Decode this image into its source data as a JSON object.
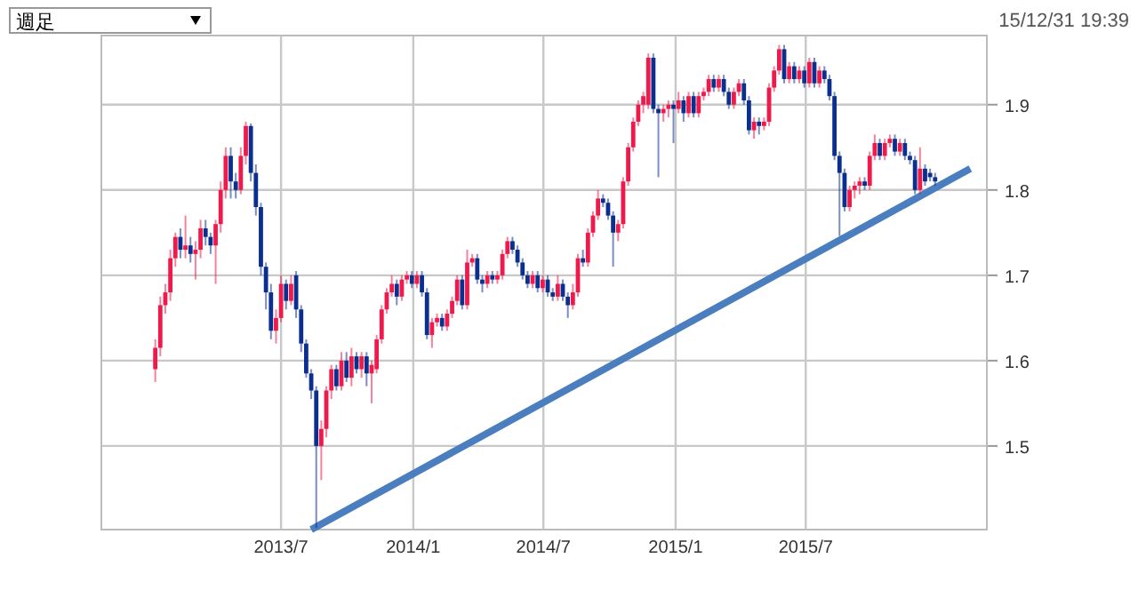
{
  "chart_data": {
    "type": "candlestick",
    "annotations": [
      "週足",
      "15/12/31 19:39"
    ],
    "xlim": [
      "2012-10-24",
      "2016-03-09"
    ],
    "xticks": [
      {
        "value": "2013-07-01",
        "label": "2013/7"
      },
      {
        "value": "2014-01-01",
        "label": "2014/1"
      },
      {
        "value": "2014-07-01",
        "label": "2014/7"
      },
      {
        "value": "2015-01-01",
        "label": "2015/1"
      },
      {
        "value": "2015-07-01",
        "label": "2015/7"
      }
    ],
    "ylim": [
      1.402,
      1.981
    ],
    "yticks": [
      1.5,
      1.6,
      1.7,
      1.8,
      1.9
    ],
    "grid": true,
    "series": [
      {
        "type": "candlestick",
        "x": [
          "2013-01-07",
          "2013-01-14",
          "2013-01-21",
          "2013-01-28",
          "2013-02-04",
          "2013-02-11",
          "2013-02-18",
          "2013-02-25",
          "2013-03-04",
          "2013-03-11",
          "2013-03-18",
          "2013-03-25",
          "2013-04-01",
          "2013-04-08",
          "2013-04-15",
          "2013-04-22",
          "2013-04-29",
          "2013-05-06",
          "2013-05-13",
          "2013-05-20",
          "2013-05-27",
          "2013-06-03",
          "2013-06-10",
          "2013-06-17",
          "2013-06-24",
          "2013-07-01",
          "2013-07-08",
          "2013-07-15",
          "2013-07-22",
          "2013-07-29",
          "2013-08-05",
          "2013-08-12",
          "2013-08-19",
          "2013-08-26",
          "2013-09-02",
          "2013-09-09",
          "2013-09-16",
          "2013-09-23",
          "2013-09-30",
          "2013-10-07",
          "2013-10-14",
          "2013-10-21",
          "2013-10-28",
          "2013-11-04",
          "2013-11-11",
          "2013-11-18",
          "2013-11-25",
          "2013-12-02",
          "2013-12-09",
          "2013-12-16",
          "2013-12-23",
          "2013-12-30",
          "2014-01-06",
          "2014-01-13",
          "2014-01-20",
          "2014-01-27",
          "2014-02-03",
          "2014-02-10",
          "2014-02-17",
          "2014-02-24",
          "2014-03-03",
          "2014-03-10",
          "2014-03-17",
          "2014-03-24",
          "2014-03-31",
          "2014-04-07",
          "2014-04-14",
          "2014-04-21",
          "2014-04-28",
          "2014-05-05",
          "2014-05-12",
          "2014-05-19",
          "2014-05-26",
          "2014-06-02",
          "2014-06-09",
          "2014-06-16",
          "2014-06-23",
          "2014-06-30",
          "2014-07-07",
          "2014-07-14",
          "2014-07-21",
          "2014-07-28",
          "2014-08-04",
          "2014-08-11",
          "2014-08-18",
          "2014-08-25",
          "2014-09-01",
          "2014-09-08",
          "2014-09-15",
          "2014-09-22",
          "2014-09-29",
          "2014-10-06",
          "2014-10-13",
          "2014-10-20",
          "2014-10-27",
          "2014-11-03",
          "2014-11-10",
          "2014-11-17",
          "2014-11-24",
          "2014-12-01",
          "2014-12-08",
          "2014-12-15",
          "2014-12-22",
          "2014-12-29",
          "2015-01-05",
          "2015-01-12",
          "2015-01-19",
          "2015-01-26",
          "2015-02-02",
          "2015-02-09",
          "2015-02-16",
          "2015-02-23",
          "2015-03-02",
          "2015-03-09",
          "2015-03-16",
          "2015-03-23",
          "2015-03-30",
          "2015-04-06",
          "2015-04-13",
          "2015-04-20",
          "2015-04-27",
          "2015-05-04",
          "2015-05-11",
          "2015-05-18",
          "2015-05-25",
          "2015-06-01",
          "2015-06-08",
          "2015-06-15",
          "2015-06-22",
          "2015-06-29",
          "2015-07-06",
          "2015-07-13",
          "2015-07-20",
          "2015-07-27",
          "2015-08-03",
          "2015-08-10",
          "2015-08-17",
          "2015-08-24",
          "2015-08-31",
          "2015-09-07",
          "2015-09-14",
          "2015-09-21",
          "2015-09-28",
          "2015-10-05",
          "2015-10-12",
          "2015-10-19",
          "2015-10-26",
          "2015-11-02",
          "2015-11-09",
          "2015-11-16",
          "2015-11-23",
          "2015-11-30",
          "2015-12-07",
          "2015-12-14",
          "2015-12-21",
          "2015-12-28"
        ],
        "ohlc": [
          [
            1.59,
            1.625,
            1.575,
            1.615
          ],
          [
            1.615,
            1.675,
            1.605,
            1.665
          ],
          [
            1.665,
            1.69,
            1.655,
            1.68
          ],
          [
            1.68,
            1.73,
            1.67,
            1.72
          ],
          [
            1.72,
            1.75,
            1.71,
            1.745
          ],
          [
            1.745,
            1.755,
            1.72,
            1.73
          ],
          [
            1.73,
            1.77,
            1.72,
            1.735
          ],
          [
            1.735,
            1.745,
            1.715,
            1.725
          ],
          [
            1.725,
            1.74,
            1.695,
            1.73
          ],
          [
            1.73,
            1.765,
            1.72,
            1.755
          ],
          [
            1.755,
            1.765,
            1.735,
            1.745
          ],
          [
            1.745,
            1.75,
            1.725,
            1.735
          ],
          [
            1.735,
            1.765,
            1.69,
            1.76
          ],
          [
            1.76,
            1.81,
            1.75,
            1.8
          ],
          [
            1.8,
            1.85,
            1.79,
            1.84
          ],
          [
            1.84,
            1.85,
            1.79,
            1.81
          ],
          [
            1.81,
            1.82,
            1.79,
            1.8
          ],
          [
            1.8,
            1.85,
            1.795,
            1.84
          ],
          [
            1.84,
            1.88,
            1.83,
            1.875
          ],
          [
            1.875,
            1.878,
            1.81,
            1.82
          ],
          [
            1.82,
            1.83,
            1.77,
            1.78
          ],
          [
            1.78,
            1.785,
            1.7,
            1.71
          ],
          [
            1.71,
            1.715,
            1.66,
            1.68
          ],
          [
            1.68,
            1.69,
            1.625,
            1.635
          ],
          [
            1.635,
            1.66,
            1.62,
            1.65
          ],
          [
            1.65,
            1.7,
            1.645,
            1.69
          ],
          [
            1.69,
            1.695,
            1.66,
            1.67
          ],
          [
            1.67,
            1.7,
            1.665,
            1.69
          ],
          [
            1.7,
            1.705,
            1.65,
            1.66
          ],
          [
            1.66,
            1.665,
            1.61,
            1.62
          ],
          [
            1.62,
            1.625,
            1.58,
            1.585
          ],
          [
            1.585,
            1.59,
            1.555,
            1.565
          ],
          [
            1.565,
            1.57,
            1.404,
            1.5
          ],
          [
            1.5,
            1.53,
            1.46,
            1.52
          ],
          [
            1.52,
            1.57,
            1.51,
            1.565
          ],
          [
            1.565,
            1.595,
            1.555,
            1.59
          ],
          [
            1.59,
            1.595,
            1.565,
            1.57
          ],
          [
            1.57,
            1.61,
            1.565,
            1.6
          ],
          [
            1.6,
            1.61,
            1.575,
            1.58
          ],
          [
            1.58,
            1.615,
            1.57,
            1.605
          ],
          [
            1.605,
            1.61,
            1.585,
            1.59
          ],
          [
            1.59,
            1.61,
            1.58,
            1.605
          ],
          [
            1.605,
            1.61,
            1.57,
            1.585
          ],
          [
            1.585,
            1.6,
            1.55,
            1.595
          ],
          [
            1.59,
            1.63,
            1.585,
            1.625
          ],
          [
            1.625,
            1.665,
            1.62,
            1.66
          ],
          [
            1.66,
            1.685,
            1.655,
            1.68
          ],
          [
            1.68,
            1.7,
            1.675,
            1.69
          ],
          [
            1.69,
            1.695,
            1.665,
            1.675
          ],
          [
            1.675,
            1.7,
            1.67,
            1.695
          ],
          [
            1.695,
            1.705,
            1.69,
            1.7
          ],
          [
            1.7,
            1.705,
            1.685,
            1.69
          ],
          [
            1.69,
            1.705,
            1.685,
            1.7
          ],
          [
            1.7,
            1.705,
            1.675,
            1.68
          ],
          [
            1.68,
            1.685,
            1.625,
            1.63
          ],
          [
            1.63,
            1.65,
            1.615,
            1.645
          ],
          [
            1.645,
            1.655,
            1.64,
            1.65
          ],
          [
            1.65,
            1.655,
            1.635,
            1.64
          ],
          [
            1.64,
            1.66,
            1.635,
            1.655
          ],
          [
            1.655,
            1.675,
            1.65,
            1.67
          ],
          [
            1.67,
            1.7,
            1.665,
            1.695
          ],
          [
            1.695,
            1.7,
            1.66,
            1.665
          ],
          [
            1.665,
            1.73,
            1.66,
            1.715
          ],
          [
            1.715,
            1.725,
            1.71,
            1.72
          ],
          [
            1.72,
            1.725,
            1.69,
            1.695
          ],
          [
            1.695,
            1.7,
            1.68,
            1.69
          ],
          [
            1.69,
            1.705,
            1.685,
            1.7
          ],
          [
            1.7,
            1.705,
            1.69,
            1.695
          ],
          [
            1.695,
            1.705,
            1.69,
            1.7
          ],
          [
            1.7,
            1.73,
            1.695,
            1.725
          ],
          [
            1.725,
            1.745,
            1.72,
            1.74
          ],
          [
            1.74,
            1.745,
            1.725,
            1.73
          ],
          [
            1.73,
            1.735,
            1.71,
            1.715
          ],
          [
            1.715,
            1.72,
            1.695,
            1.7
          ],
          [
            1.7,
            1.705,
            1.685,
            1.69
          ],
          [
            1.69,
            1.705,
            1.685,
            1.7
          ],
          [
            1.7,
            1.705,
            1.68,
            1.685
          ],
          [
            1.685,
            1.7,
            1.68,
            1.695
          ],
          [
            1.695,
            1.7,
            1.675,
            1.68
          ],
          [
            1.68,
            1.685,
            1.67,
            1.675
          ],
          [
            1.675,
            1.7,
            1.67,
            1.69
          ],
          [
            1.69,
            1.695,
            1.67,
            1.675
          ],
          [
            1.675,
            1.68,
            1.65,
            1.665
          ],
          [
            1.665,
            1.69,
            1.66,
            1.68
          ],
          [
            1.68,
            1.725,
            1.675,
            1.72
          ],
          [
            1.72,
            1.73,
            1.71,
            1.715
          ],
          [
            1.715,
            1.755,
            1.71,
            1.75
          ],
          [
            1.75,
            1.775,
            1.745,
            1.77
          ],
          [
            1.77,
            1.8,
            1.765,
            1.79
          ],
          [
            1.79,
            1.795,
            1.78,
            1.785
          ],
          [
            1.785,
            1.79,
            1.765,
            1.77
          ],
          [
            1.77,
            1.775,
            1.71,
            1.75
          ],
          [
            1.75,
            1.765,
            1.74,
            1.76
          ],
          [
            1.76,
            1.815,
            1.755,
            1.81
          ],
          [
            1.81,
            1.855,
            1.805,
            1.85
          ],
          [
            1.85,
            1.885,
            1.845,
            1.88
          ],
          [
            1.88,
            1.905,
            1.875,
            1.9
          ],
          [
            1.9,
            1.915,
            1.89,
            1.91
          ],
          [
            1.9,
            1.96,
            1.895,
            1.955
          ],
          [
            1.955,
            1.96,
            1.89,
            1.895
          ],
          [
            1.895,
            1.9,
            1.815,
            1.89
          ],
          [
            1.89,
            1.9,
            1.88,
            1.895
          ],
          [
            1.895,
            1.905,
            1.885,
            1.9
          ],
          [
            1.9,
            1.905,
            1.855,
            1.895
          ],
          [
            1.895,
            1.915,
            1.89,
            1.905
          ],
          [
            1.905,
            1.91,
            1.88,
            1.89
          ],
          [
            1.89,
            1.915,
            1.885,
            1.91
          ],
          [
            1.91,
            1.915,
            1.885,
            1.89
          ],
          [
            1.89,
            1.915,
            1.885,
            1.91
          ],
          [
            1.91,
            1.92,
            1.905,
            1.915
          ],
          [
            1.915,
            1.935,
            1.91,
            1.93
          ],
          [
            1.93,
            1.935,
            1.915,
            1.92
          ],
          [
            1.92,
            1.935,
            1.915,
            1.93
          ],
          [
            1.93,
            1.935,
            1.91,
            1.915
          ],
          [
            1.915,
            1.92,
            1.895,
            1.9
          ],
          [
            1.9,
            1.92,
            1.895,
            1.915
          ],
          [
            1.915,
            1.93,
            1.91,
            1.925
          ],
          [
            1.925,
            1.93,
            1.9,
            1.905
          ],
          [
            1.905,
            1.91,
            1.865,
            1.87
          ],
          [
            1.87,
            1.885,
            1.86,
            1.88
          ],
          [
            1.88,
            1.885,
            1.865,
            1.875
          ],
          [
            1.875,
            1.885,
            1.87,
            1.88
          ],
          [
            1.88,
            1.925,
            1.875,
            1.92
          ],
          [
            1.92,
            1.945,
            1.915,
            1.94
          ],
          [
            1.94,
            1.97,
            1.935,
            1.965
          ],
          [
            1.965,
            1.97,
            1.925,
            1.93
          ],
          [
            1.93,
            1.95,
            1.925,
            1.945
          ],
          [
            1.945,
            1.95,
            1.925,
            1.93
          ],
          [
            1.93,
            1.945,
            1.925,
            1.94
          ],
          [
            1.94,
            1.945,
            1.92,
            1.925
          ],
          [
            1.925,
            1.955,
            1.92,
            1.95
          ],
          [
            1.95,
            1.955,
            1.92,
            1.925
          ],
          [
            1.925,
            1.945,
            1.92,
            1.94
          ],
          [
            1.94,
            1.945,
            1.925,
            1.93
          ],
          [
            1.93,
            1.935,
            1.905,
            1.91
          ],
          [
            1.91,
            1.915,
            1.835,
            1.84
          ],
          [
            1.84,
            1.845,
            1.746,
            1.82
          ],
          [
            1.82,
            1.825,
            1.775,
            1.78
          ],
          [
            1.78,
            1.805,
            1.775,
            1.8
          ],
          [
            1.8,
            1.81,
            1.79,
            1.805
          ],
          [
            1.805,
            1.815,
            1.795,
            1.81
          ],
          [
            1.81,
            1.815,
            1.8,
            1.805
          ],
          [
            1.805,
            1.845,
            1.8,
            1.84
          ],
          [
            1.84,
            1.865,
            1.835,
            1.855
          ],
          [
            1.855,
            1.86,
            1.835,
            1.84
          ],
          [
            1.84,
            1.86,
            1.835,
            1.855
          ],
          [
            1.855,
            1.865,
            1.85,
            1.86
          ],
          [
            1.86,
            1.865,
            1.84,
            1.845
          ],
          [
            1.845,
            1.86,
            1.84,
            1.855
          ],
          [
            1.855,
            1.86,
            1.835,
            1.84
          ],
          [
            1.84,
            1.845,
            1.83,
            1.835
          ],
          [
            1.835,
            1.84,
            1.795,
            1.8
          ],
          [
            1.8,
            1.85,
            1.795,
            1.825
          ],
          [
            1.825,
            1.83,
            1.805,
            1.81
          ],
          [
            1.82,
            1.825,
            1.81,
            1.815
          ],
          [
            1.815,
            1.82,
            1.805,
            1.81
          ]
        ],
        "colors": [
          "#f0194b",
          "#f0194b",
          "#f0194b",
          "#f0194b",
          "#f0194b",
          "#0b2f8f",
          "#f0194b",
          "#0b2f8f",
          "#f0194b",
          "#f0194b",
          "#0b2f8f",
          "#0b2f8f",
          "#f0194b",
          "#f0194b",
          "#f0194b",
          "#0b2f8f",
          "#0b2f8f",
          "#f0194b",
          "#f0194b",
          "#0b2f8f",
          "#0b2f8f",
          "#0b2f8f",
          "#0b2f8f",
          "#0b2f8f",
          "#f0194b",
          "#f0194b",
          "#0b2f8f",
          "#f0194b",
          "#0b2f8f",
          "#0b2f8f",
          "#0b2f8f",
          "#0b2f8f",
          "#0b2f8f",
          "#f0194b",
          "#f0194b",
          "#f0194b",
          "#0b2f8f",
          "#f0194b",
          "#0b2f8f",
          "#f0194b",
          "#0b2f8f",
          "#f0194b",
          "#0b2f8f",
          "#f0194b",
          "#f0194b",
          "#f0194b",
          "#f0194b",
          "#f0194b",
          "#0b2f8f",
          "#f0194b",
          "#f0194b",
          "#0b2f8f",
          "#f0194b",
          "#0b2f8f",
          "#0b2f8f",
          "#f0194b",
          "#f0194b",
          "#0b2f8f",
          "#f0194b",
          "#f0194b",
          "#f0194b",
          "#0b2f8f",
          "#f0194b",
          "#f0194b",
          "#0b2f8f",
          "#0b2f8f",
          "#f0194b",
          "#0b2f8f",
          "#f0194b",
          "#f0194b",
          "#f0194b",
          "#0b2f8f",
          "#0b2f8f",
          "#0b2f8f",
          "#0b2f8f",
          "#f0194b",
          "#0b2f8f",
          "#f0194b",
          "#0b2f8f",
          "#0b2f8f",
          "#f0194b",
          "#0b2f8f",
          "#0b2f8f",
          "#f0194b",
          "#f0194b",
          "#0b2f8f",
          "#f0194b",
          "#f0194b",
          "#f0194b",
          "#0b2f8f",
          "#0b2f8f",
          "#0b2f8f",
          "#f0194b",
          "#f0194b",
          "#f0194b",
          "#f0194b",
          "#f0194b",
          "#f0194b",
          "#f0194b",
          "#0b2f8f",
          "#0b2f8f",
          "#f0194b",
          "#f0194b",
          "#0b2f8f",
          "#f0194b",
          "#0b2f8f",
          "#f0194b",
          "#0b2f8f",
          "#f0194b",
          "#f0194b",
          "#f0194b",
          "#0b2f8f",
          "#f0194b",
          "#0b2f8f",
          "#0b2f8f",
          "#f0194b",
          "#f0194b",
          "#0b2f8f",
          "#0b2f8f",
          "#f0194b",
          "#0b2f8f",
          "#f0194b",
          "#f0194b",
          "#f0194b",
          "#f0194b",
          "#0b2f8f",
          "#f0194b",
          "#0b2f8f",
          "#f0194b",
          "#0b2f8f",
          "#f0194b",
          "#0b2f8f",
          "#f0194b",
          "#0b2f8f",
          "#0b2f8f",
          "#0b2f8f",
          "#0b2f8f",
          "#0b2f8f",
          "#f0194b",
          "#f0194b",
          "#f0194b",
          "#0b2f8f",
          "#f0194b",
          "#f0194b",
          "#0b2f8f",
          "#f0194b",
          "#f0194b",
          "#0b2f8f",
          "#f0194b",
          "#0b2f8f",
          "#0b2f8f",
          "#0b2f8f",
          "#f0194b",
          "#0b2f8f",
          "#0b2f8f",
          "#0b2f8f"
        ]
      },
      {
        "type": "line",
        "x": [
          "2013-08-12",
          "2016-02-15"
        ],
        "values": [
          1.402,
          1.825
        ],
        "color": "#4a7ebf"
      }
    ]
  }
}
